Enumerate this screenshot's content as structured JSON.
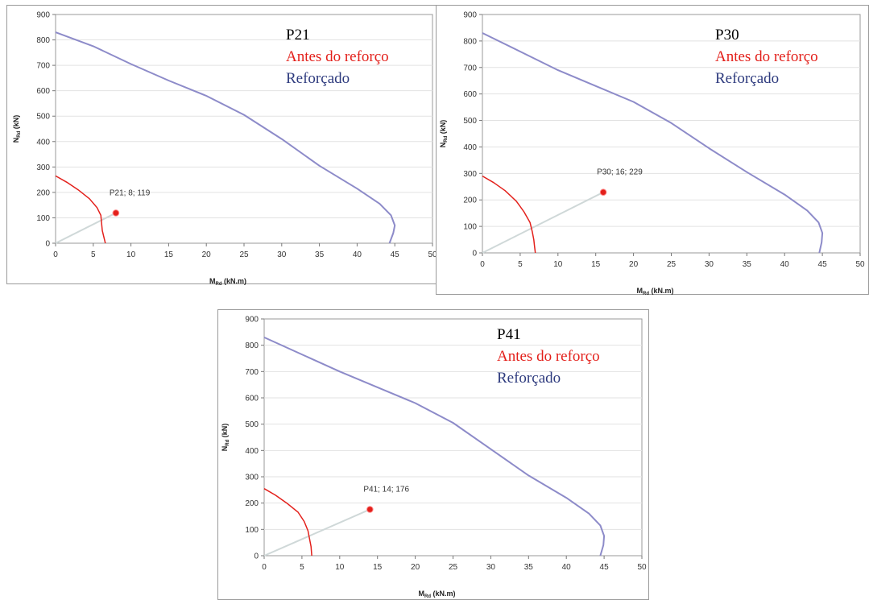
{
  "colors": {
    "before": "#e3201b",
    "reinforced": "#8d8bc9",
    "legend_blue": "#2e3b7e",
    "point": "#e3201b",
    "ray": "#cfd8d8",
    "grid": "#e2e2e2",
    "frame": "#9a9a9a"
  },
  "chart_data": [
    {
      "type": "line",
      "id": "P21",
      "legend": {
        "title": "P21",
        "before": "Antes do reforço",
        "reinforced": "Reforçado"
      },
      "xlabel": {
        "main": "M",
        "sub": "Rd",
        "unit": " (kN.m)"
      },
      "ylabel": {
        "main": "N",
        "sub": "Rd",
        "unit": " (kN)"
      },
      "xlim": [
        0,
        50
      ],
      "ylim": [
        0,
        900
      ],
      "xticks": [
        0,
        5,
        10,
        15,
        20,
        25,
        30,
        35,
        40,
        45,
        50
      ],
      "yticks": [
        0,
        100,
        200,
        300,
        400,
        500,
        600,
        700,
        800,
        900
      ],
      "series": [
        {
          "name": "Antes do reforço",
          "color_key": "before",
          "points": [
            [
              0,
              265
            ],
            [
              1.5,
              240
            ],
            [
              3,
              210
            ],
            [
              4.5,
              175
            ],
            [
              5.5,
              140
            ],
            [
              6,
              110
            ],
            [
              6.1,
              80
            ],
            [
              6.2,
              50
            ],
            [
              6.4,
              25
            ],
            [
              6.6,
              0
            ]
          ]
        },
        {
          "name": "Reforçado",
          "color_key": "reinforced",
          "points": [
            [
              0,
              830
            ],
            [
              5,
              775
            ],
            [
              10,
              705
            ],
            [
              15,
              640
            ],
            [
              20,
              580
            ],
            [
              25,
              505
            ],
            [
              30,
              410
            ],
            [
              35,
              305
            ],
            [
              40,
              215
            ],
            [
              43,
              155
            ],
            [
              44.5,
              110
            ],
            [
              45,
              70
            ],
            [
              44.8,
              40
            ],
            [
              44.3,
              0
            ]
          ]
        }
      ],
      "point": {
        "x": 8,
        "y": 119,
        "label": "P21; 8; 119"
      }
    },
    {
      "type": "line",
      "id": "P30",
      "legend": {
        "title": "P30",
        "before": "Antes do reforço",
        "reinforced": "Reforçado"
      },
      "xlabel": {
        "main": "M",
        "sub": "Rd",
        "unit": " (kN.m)"
      },
      "ylabel": {
        "main": "N",
        "sub": "Rd",
        "unit": " (kN)"
      },
      "xlim": [
        0,
        50
      ],
      "ylim": [
        0,
        900
      ],
      "xticks": [
        0,
        5,
        10,
        15,
        20,
        25,
        30,
        35,
        40,
        45,
        50
      ],
      "yticks": [
        0,
        100,
        200,
        300,
        400,
        500,
        600,
        700,
        800,
        900
      ],
      "series": [
        {
          "name": "Antes do reforço",
          "color_key": "before",
          "points": [
            [
              0,
              290
            ],
            [
              1.5,
              265
            ],
            [
              3,
              235
            ],
            [
              4.5,
              195
            ],
            [
              5.5,
              155
            ],
            [
              6.3,
              115
            ],
            [
              6.6,
              80
            ],
            [
              6.8,
              50
            ],
            [
              6.9,
              25
            ],
            [
              7,
              0
            ]
          ]
        },
        {
          "name": "Reforçado",
          "color_key": "reinforced",
          "points": [
            [
              0,
              830
            ],
            [
              5,
              760
            ],
            [
              10,
              690
            ],
            [
              15,
              630
            ],
            [
              20,
              570
            ],
            [
              25,
              490
            ],
            [
              30,
              395
            ],
            [
              35,
              305
            ],
            [
              40,
              220
            ],
            [
              43,
              160
            ],
            [
              44.5,
              115
            ],
            [
              45,
              75
            ],
            [
              44.9,
              40
            ],
            [
              44.6,
              0
            ]
          ]
        }
      ],
      "point": {
        "x": 16,
        "y": 229,
        "label": "P30; 16; 229"
      }
    },
    {
      "type": "line",
      "id": "P41",
      "legend": {
        "title": "P41",
        "before": "Antes do reforço",
        "reinforced": "Reforçado"
      },
      "xlabel": {
        "main": "M",
        "sub": "Rd",
        "unit": " (kN.m)"
      },
      "ylabel": {
        "main": "N",
        "sub": "Rd",
        "unit": " (kN)"
      },
      "xlim": [
        0,
        50
      ],
      "ylim": [
        0,
        900
      ],
      "xticks": [
        0,
        5,
        10,
        15,
        20,
        25,
        30,
        35,
        40,
        45,
        50
      ],
      "yticks": [
        0,
        100,
        200,
        300,
        400,
        500,
        600,
        700,
        800,
        900
      ],
      "series": [
        {
          "name": "Antes do reforço",
          "color_key": "before",
          "points": [
            [
              0,
              255
            ],
            [
              1.5,
              230
            ],
            [
              3,
              200
            ],
            [
              4.5,
              165
            ],
            [
              5.3,
              130
            ],
            [
              5.8,
              95
            ],
            [
              6,
              65
            ],
            [
              6.2,
              35
            ],
            [
              6.3,
              0
            ]
          ]
        },
        {
          "name": "Reforçado",
          "color_key": "reinforced",
          "points": [
            [
              0,
              830
            ],
            [
              5,
              765
            ],
            [
              10,
              700
            ],
            [
              15,
              640
            ],
            [
              20,
              580
            ],
            [
              25,
              505
            ],
            [
              30,
              405
            ],
            [
              35,
              305
            ],
            [
              40,
              220
            ],
            [
              43,
              160
            ],
            [
              44.5,
              115
            ],
            [
              45,
              75
            ],
            [
              44.9,
              40
            ],
            [
              44.5,
              0
            ]
          ]
        }
      ],
      "point": {
        "x": 14,
        "y": 176,
        "label": "P41; 14; 176"
      }
    }
  ]
}
